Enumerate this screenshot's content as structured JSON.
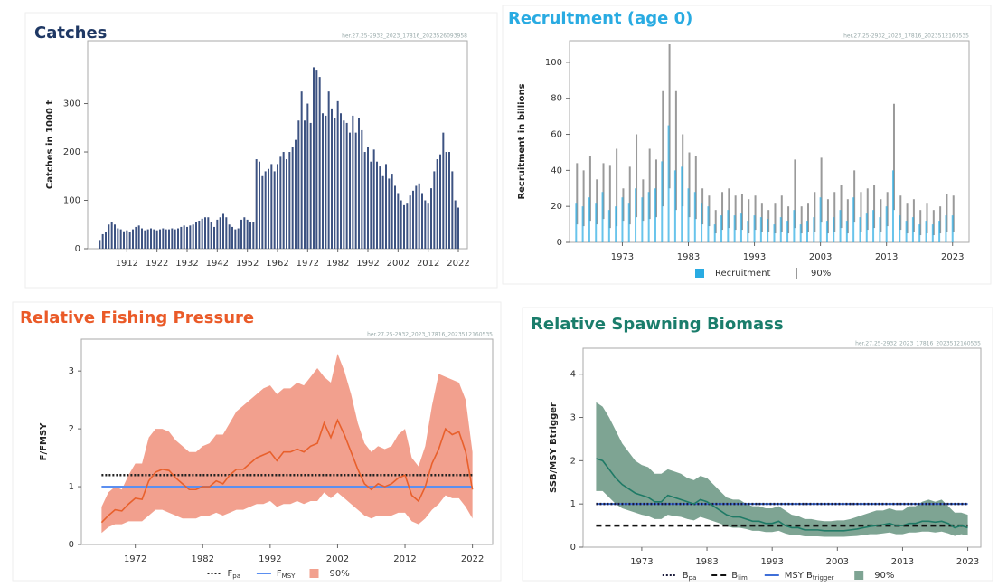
{
  "chart_data": [
    {
      "type": "bar",
      "title": "Catches",
      "subtitle": "her.27.25-2932_2023_17816_2023526093958",
      "y_label": "Catches in 1000 t",
      "x": [
        1903,
        1904,
        1905,
        1906,
        1907,
        1908,
        1909,
        1910,
        1911,
        1912,
        1913,
        1914,
        1915,
        1916,
        1917,
        1918,
        1919,
        1920,
        1921,
        1922,
        1923,
        1924,
        1925,
        1926,
        1927,
        1928,
        1929,
        1930,
        1931,
        1932,
        1933,
        1934,
        1935,
        1936,
        1937,
        1938,
        1939,
        1940,
        1941,
        1942,
        1943,
        1944,
        1945,
        1946,
        1947,
        1948,
        1949,
        1950,
        1951,
        1952,
        1953,
        1954,
        1955,
        1956,
        1957,
        1958,
        1959,
        1960,
        1961,
        1962,
        1963,
        1964,
        1965,
        1966,
        1967,
        1968,
        1969,
        1970,
        1971,
        1972,
        1973,
        1974,
        1975,
        1976,
        1977,
        1978,
        1979,
        1980,
        1981,
        1982,
        1983,
        1984,
        1985,
        1986,
        1987,
        1988,
        1989,
        1990,
        1991,
        1992,
        1993,
        1994,
        1995,
        1996,
        1997,
        1998,
        1999,
        2000,
        2001,
        2002,
        2003,
        2004,
        2005,
        2006,
        2007,
        2008,
        2009,
        2010,
        2011,
        2012,
        2013,
        2014,
        2015,
        2016,
        2017,
        2018,
        2019,
        2020,
        2021,
        2022
      ],
      "series": [
        {
          "color": "#3d5382",
          "values": [
            18,
            30,
            35,
            50,
            55,
            50,
            42,
            40,
            36,
            38,
            35,
            40,
            45,
            48,
            42,
            38,
            40,
            42,
            40,
            38,
            40,
            42,
            40,
            40,
            42,
            40,
            42,
            45,
            48,
            45,
            48,
            50,
            55,
            58,
            62,
            65,
            65,
            55,
            45,
            60,
            65,
            72,
            65,
            50,
            45,
            40,
            42,
            60,
            65,
            60,
            55,
            55,
            185,
            180,
            150,
            160,
            165,
            175,
            160,
            175,
            190,
            200,
            185,
            200,
            210,
            225,
            265,
            325,
            265,
            300,
            260,
            375,
            370,
            355,
            280,
            275,
            325,
            290,
            270,
            305,
            280,
            265,
            260,
            240,
            275,
            240,
            270,
            245,
            200,
            210,
            180,
            205,
            180,
            170,
            150,
            175,
            145,
            155,
            130,
            115,
            100,
            90,
            95,
            110,
            120,
            130,
            135,
            115,
            100,
            95,
            125,
            160,
            185,
            195,
            240,
            200,
            200,
            160,
            100,
            85
          ]
        }
      ],
      "xlim": [
        1899,
        2025
      ],
      "xticks": [
        1912,
        1922,
        1932,
        1942,
        1952,
        1962,
        1972,
        1982,
        1992,
        2002,
        2012,
        2022
      ],
      "ylim": [
        0,
        430
      ],
      "yticks": [
        0,
        100,
        200,
        300
      ]
    },
    {
      "type": "bar",
      "title": "Recruitment (age 0)",
      "subtitle": "her.27.25-2932_2023_17816_2023512160535",
      "y_label": "Recruitment in billions",
      "x": [
        1966,
        1967,
        1968,
        1969,
        1970,
        1971,
        1972,
        1973,
        1974,
        1975,
        1976,
        1977,
        1978,
        1979,
        1980,
        1981,
        1982,
        1983,
        1984,
        1985,
        1986,
        1987,
        1988,
        1989,
        1990,
        1991,
        1992,
        1993,
        1994,
        1995,
        1996,
        1997,
        1998,
        1999,
        2000,
        2001,
        2002,
        2003,
        2004,
        2005,
        2006,
        2007,
        2008,
        2009,
        2010,
        2011,
        2012,
        2013,
        2014,
        2015,
        2016,
        2017,
        2018,
        2019,
        2020,
        2021,
        2022,
        2023
      ],
      "series": [
        {
          "name": "Recruitment",
          "color": "#29abe2",
          "values": [
            22,
            20,
            25,
            22,
            28,
            18,
            20,
            25,
            22,
            30,
            25,
            28,
            30,
            45,
            65,
            40,
            42,
            30,
            28,
            22,
            20,
            10,
            15,
            18,
            15,
            16,
            12,
            15,
            14,
            13,
            10,
            14,
            12,
            18,
            10,
            12,
            14,
            25,
            12,
            14,
            18,
            12,
            25,
            14,
            16,
            18,
            14,
            20,
            40,
            15,
            12,
            14,
            10,
            12,
            10,
            12,
            15,
            15
          ]
        }
      ],
      "interval": {
        "name": "90%",
        "color": "#9a9a9a",
        "low": [
          10,
          9,
          12,
          10,
          13,
          8,
          9,
          12,
          10,
          14,
          12,
          13,
          14,
          20,
          30,
          18,
          20,
          14,
          13,
          10,
          9,
          5,
          7,
          8,
          7,
          7,
          5,
          7,
          6,
          6,
          5,
          6,
          5,
          8,
          5,
          6,
          6,
          11,
          5,
          6,
          8,
          5,
          11,
          6,
          7,
          8,
          6,
          9,
          18,
          7,
          5,
          6,
          4,
          5,
          4,
          5,
          6,
          6
        ],
        "high": [
          44,
          40,
          48,
          35,
          44,
          43,
          52,
          30,
          42,
          60,
          35,
          52,
          46,
          84,
          110,
          84,
          60,
          50,
          48,
          30,
          26,
          18,
          28,
          30,
          26,
          27,
          24,
          26,
          22,
          18,
          22,
          26,
          20,
          46,
          20,
          22,
          28,
          47,
          24,
          28,
          32,
          24,
          40,
          28,
          30,
          32,
          24,
          28,
          77,
          26,
          22,
          24,
          18,
          22,
          18,
          20,
          27,
          26
        ]
      },
      "xlim": [
        1965,
        2025.5
      ],
      "xticks": [
        1973,
        1983,
        1993,
        2003,
        2013,
        2023
      ],
      "ylim": [
        0,
        112
      ],
      "yticks": [
        0,
        20,
        40,
        60,
        80,
        100
      ]
    },
    {
      "type": "line",
      "title": "Relative Fishing Pressure",
      "subtitle": "her.27.25-2932_2023_17816_2023512160535",
      "y_label": "F/FMSY",
      "x": [
        1967,
        1968,
        1969,
        1970,
        1971,
        1972,
        1973,
        1974,
        1975,
        1976,
        1977,
        1978,
        1979,
        1980,
        1981,
        1982,
        1983,
        1984,
        1985,
        1986,
        1987,
        1988,
        1989,
        1990,
        1991,
        1992,
        1993,
        1994,
        1995,
        1996,
        1997,
        1998,
        1999,
        2000,
        2001,
        2002,
        2003,
        2004,
        2005,
        2006,
        2007,
        2008,
        2009,
        2010,
        2011,
        2012,
        2013,
        2014,
        2015,
        2016,
        2017,
        2018,
        2019,
        2020,
        2021,
        2022
      ],
      "series": [
        {
          "color": "#e8602c",
          "values": [
            0.38,
            0.5,
            0.6,
            0.58,
            0.7,
            0.8,
            0.78,
            1.1,
            1.25,
            1.3,
            1.28,
            1.15,
            1.05,
            0.95,
            0.95,
            1.0,
            1.0,
            1.1,
            1.05,
            1.2,
            1.3,
            1.3,
            1.4,
            1.5,
            1.55,
            1.6,
            1.45,
            1.6,
            1.6,
            1.65,
            1.6,
            1.7,
            1.75,
            2.1,
            1.85,
            2.15,
            1.9,
            1.6,
            1.3,
            1.05,
            0.95,
            1.05,
            1.0,
            1.05,
            1.15,
            1.2,
            0.85,
            0.75,
            1.0,
            1.4,
            1.65,
            2.0,
            1.9,
            1.95,
            1.6,
            0.95
          ]
        }
      ],
      "band": {
        "name": "90%",
        "color": "#f2a08e",
        "low": [
          0.2,
          0.3,
          0.35,
          0.35,
          0.4,
          0.4,
          0.4,
          0.5,
          0.6,
          0.6,
          0.55,
          0.5,
          0.45,
          0.45,
          0.45,
          0.5,
          0.5,
          0.55,
          0.5,
          0.55,
          0.6,
          0.6,
          0.65,
          0.7,
          0.7,
          0.75,
          0.65,
          0.7,
          0.7,
          0.75,
          0.7,
          0.75,
          0.75,
          0.9,
          0.8,
          0.9,
          0.8,
          0.7,
          0.6,
          0.5,
          0.45,
          0.5,
          0.5,
          0.5,
          0.55,
          0.55,
          0.4,
          0.35,
          0.45,
          0.6,
          0.7,
          0.85,
          0.8,
          0.8,
          0.65,
          0.45
        ],
        "high": [
          0.65,
          0.9,
          1.0,
          0.95,
          1.2,
          1.4,
          1.4,
          1.85,
          2.0,
          2.0,
          1.95,
          1.8,
          1.7,
          1.6,
          1.6,
          1.7,
          1.75,
          1.9,
          1.9,
          2.1,
          2.3,
          2.4,
          2.5,
          2.6,
          2.7,
          2.75,
          2.6,
          2.7,
          2.7,
          2.8,
          2.75,
          2.9,
          3.05,
          2.9,
          2.8,
          3.3,
          3.0,
          2.6,
          2.1,
          1.75,
          1.6,
          1.7,
          1.65,
          1.7,
          1.9,
          2.0,
          1.5,
          1.35,
          1.7,
          2.4,
          2.95,
          2.9,
          2.85,
          2.8,
          2.5,
          1.6
        ]
      },
      "reference_lines": [
        {
          "name": "F",
          "subscript": "pa",
          "value": 1.2,
          "color": "#222222",
          "style": "dotted"
        },
        {
          "name": "F",
          "subscript": "MSY",
          "value": 1.0,
          "color": "#5b8ff0",
          "style": "solid"
        }
      ],
      "xlim": [
        1964,
        2025
      ],
      "xticks": [
        1972,
        1982,
        1992,
        2002,
        2012,
        2022
      ],
      "ylim": [
        0,
        3.55
      ],
      "yticks": [
        0,
        1,
        2,
        3
      ]
    },
    {
      "type": "line",
      "title": "Relative Spawning Biomass",
      "subtitle": "her.27.25-2932_2023_17816_2023512160535",
      "y_label": "SSB/MSY Btrigger",
      "x": [
        1966,
        1967,
        1968,
        1969,
        1970,
        1971,
        1972,
        1973,
        1974,
        1975,
        1976,
        1977,
        1978,
        1979,
        1980,
        1981,
        1982,
        1983,
        1984,
        1985,
        1986,
        1987,
        1988,
        1989,
        1990,
        1991,
        1992,
        1993,
        1994,
        1995,
        1996,
        1997,
        1998,
        1999,
        2000,
        2001,
        2002,
        2003,
        2004,
        2005,
        2006,
        2007,
        2008,
        2009,
        2010,
        2011,
        2012,
        2013,
        2014,
        2015,
        2016,
        2017,
        2018,
        2019,
        2020,
        2021,
        2022,
        2023
      ],
      "series": [
        {
          "color": "#1f7a66",
          "values": [
            2.05,
            2.0,
            1.8,
            1.6,
            1.45,
            1.35,
            1.25,
            1.2,
            1.15,
            1.05,
            1.05,
            1.2,
            1.15,
            1.1,
            1.05,
            1.0,
            1.1,
            1.05,
            0.95,
            0.85,
            0.75,
            0.7,
            0.7,
            0.65,
            0.6,
            0.6,
            0.55,
            0.55,
            0.6,
            0.5,
            0.45,
            0.45,
            0.4,
            0.4,
            0.4,
            0.38,
            0.38,
            0.38,
            0.38,
            0.4,
            0.42,
            0.45,
            0.48,
            0.5,
            0.52,
            0.55,
            0.5,
            0.5,
            0.55,
            0.55,
            0.6,
            0.6,
            0.58,
            0.6,
            0.55,
            0.45,
            0.5,
            0.45
          ]
        }
      ],
      "band": {
        "name": "90%",
        "color": "#7ea493",
        "low": [
          1.3,
          1.3,
          1.15,
          1.0,
          0.9,
          0.85,
          0.8,
          0.75,
          0.72,
          0.65,
          0.65,
          0.75,
          0.72,
          0.7,
          0.65,
          0.62,
          0.7,
          0.65,
          0.6,
          0.55,
          0.48,
          0.45,
          0.45,
          0.42,
          0.38,
          0.38,
          0.35,
          0.35,
          0.38,
          0.32,
          0.28,
          0.28,
          0.25,
          0.25,
          0.25,
          0.24,
          0.24,
          0.24,
          0.24,
          0.25,
          0.26,
          0.28,
          0.3,
          0.3,
          0.32,
          0.34,
          0.3,
          0.3,
          0.34,
          0.34,
          0.36,
          0.36,
          0.34,
          0.36,
          0.32,
          0.26,
          0.3,
          0.27
        ],
        "high": [
          3.35,
          3.25,
          3.0,
          2.7,
          2.4,
          2.2,
          2.0,
          1.9,
          1.85,
          1.7,
          1.7,
          1.8,
          1.75,
          1.7,
          1.6,
          1.55,
          1.65,
          1.6,
          1.45,
          1.3,
          1.15,
          1.1,
          1.1,
          1.0,
          0.95,
          0.95,
          0.9,
          0.9,
          0.95,
          0.85,
          0.75,
          0.72,
          0.65,
          0.65,
          0.62,
          0.6,
          0.6,
          0.62,
          0.62,
          0.65,
          0.7,
          0.75,
          0.8,
          0.85,
          0.85,
          0.9,
          0.85,
          0.85,
          0.95,
          0.95,
          1.05,
          1.1,
          1.05,
          1.1,
          0.95,
          0.8,
          0.8,
          0.75
        ]
      },
      "reference_lines": [
        {
          "name": "MSY B",
          "subscript": "trigger",
          "value": 1.0,
          "color": "#3f6fd8",
          "style": "solid"
        },
        {
          "name": "B",
          "subscript": "pa",
          "value": 1.0,
          "color": "#1a1a3a",
          "style": "dotted"
        },
        {
          "name": "B",
          "subscript": "lim",
          "value": 0.5,
          "color": "#111111",
          "style": "dashed"
        }
      ],
      "legend_order": [
        1,
        2,
        0
      ],
      "xlim": [
        1964,
        2025
      ],
      "xticks": [
        1973,
        1983,
        1993,
        2003,
        2013,
        2023
      ],
      "ylim": [
        0,
        4.6
      ],
      "yticks": [
        0,
        1,
        2,
        3,
        4
      ]
    }
  ]
}
